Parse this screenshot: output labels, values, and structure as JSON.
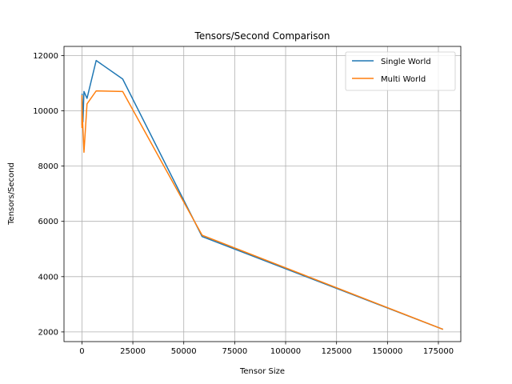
{
  "chart_data": {
    "type": "line",
    "title": "Tensors/Second Comparison",
    "xlabel": "Tensor Size",
    "ylabel": "Tensors/Second",
    "xlim": [
      -8800,
      186000
    ],
    "ylim": [
      1650,
      12330
    ],
    "xticks": [
      0,
      25000,
      50000,
      75000,
      100000,
      125000,
      150000,
      175000
    ],
    "yticks": [
      2000,
      4000,
      6000,
      8000,
      10000,
      12000
    ],
    "grid": true,
    "legend_position": "upper-right",
    "series": [
      {
        "name": "Single World",
        "color": "#1f77b4",
        "x": [
          1,
          10,
          100,
          500,
          1000,
          2500,
          7000,
          20000,
          59000,
          177000
        ],
        "y": [
          9500,
          10400,
          10600,
          9600,
          10700,
          10450,
          11820,
          11150,
          5450,
          2100
        ]
      },
      {
        "name": "Multi World",
        "color": "#ff7f0e",
        "x": [
          1,
          10,
          100,
          500,
          1000,
          2500,
          7000,
          20000,
          59000,
          177000
        ],
        "y": [
          9400,
          10550,
          10000,
          9350,
          8500,
          10250,
          10720,
          10700,
          5500,
          2100
        ]
      }
    ]
  }
}
